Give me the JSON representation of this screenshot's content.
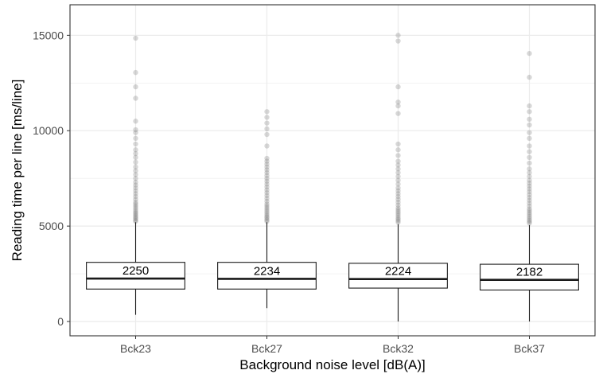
{
  "chart_data": {
    "type": "box",
    "title": "",
    "xlabel": "Background noise level [dB(A)]",
    "ylabel": "Reading time per line [ms/line]",
    "ylim": [
      -750,
      16600
    ],
    "yticks": [
      0,
      5000,
      10000,
      15000
    ],
    "ytick_labels": [
      "0",
      "5000",
      "10000",
      "15000"
    ],
    "grid": true,
    "theme": "bw",
    "colors": {
      "box_fill": "#ffffff",
      "box_stroke": "#1a1a1a",
      "outlier": "#7f7f7f",
      "grid": "#ebebeb",
      "panel_border": "#333333",
      "tick_text": "#4d4d4d"
    },
    "categories": [
      "Bck23",
      "Bck27",
      "Bck32",
      "Bck37"
    ],
    "boxes": [
      {
        "category": "Bck23",
        "median": 2250,
        "q1": 1700,
        "q3": 3100,
        "whisker_low": 350,
        "whisker_high": 5200,
        "median_label": "2250",
        "outliers": [
          5250,
          5300,
          5380,
          5450,
          5520,
          5600,
          5680,
          5750,
          5850,
          5950,
          6050,
          6150,
          6250,
          6400,
          6550,
          6700,
          6850,
          7000,
          7150,
          7300,
          7500,
          7700,
          7900,
          8100,
          8350,
          8600,
          8800,
          9000,
          9300,
          9600,
          9900,
          10050,
          10500,
          11700,
          12300,
          13050,
          14850
        ]
      },
      {
        "category": "Bck27",
        "median": 2234,
        "q1": 1700,
        "q3": 3100,
        "whisker_low": 700,
        "whisker_high": 5200,
        "median_label": "2234",
        "outliers": [
          5250,
          5320,
          5400,
          5480,
          5560,
          5650,
          5750,
          5850,
          5950,
          6050,
          6150,
          6300,
          6450,
          6600,
          6750,
          6900,
          7050,
          7200,
          7350,
          7500,
          7650,
          7800,
          7950,
          8100,
          8250,
          8400,
          8550,
          9200,
          9800,
          10100,
          10400,
          10700,
          11000
        ]
      },
      {
        "category": "Bck32",
        "median": 2224,
        "q1": 1750,
        "q3": 3050,
        "whisker_low": 0,
        "whisker_high": 5100,
        "median_label": "2224",
        "outliers": [
          5200,
          5280,
          5360,
          5450,
          5550,
          5650,
          5750,
          5850,
          5950,
          6100,
          6250,
          6400,
          6550,
          6700,
          6850,
          7000,
          7200,
          7400,
          7600,
          7800,
          8000,
          8200,
          8400,
          8700,
          9000,
          9300,
          10900,
          11300,
          11500,
          12300,
          14700,
          15000
        ]
      },
      {
        "category": "Bck37",
        "median": 2182,
        "q1": 1650,
        "q3": 3000,
        "whisker_low": 0,
        "whisker_high": 5050,
        "median_label": "2182",
        "outliers": [
          5150,
          5230,
          5310,
          5400,
          5500,
          5600,
          5700,
          5800,
          5900,
          6050,
          6200,
          6350,
          6500,
          6650,
          6800,
          6950,
          7100,
          7250,
          7400,
          7600,
          7800,
          8000,
          8300,
          8600,
          8900,
          9200,
          9600,
          9900,
          10300,
          10600,
          11000,
          11300,
          12800,
          14050
        ]
      }
    ]
  }
}
